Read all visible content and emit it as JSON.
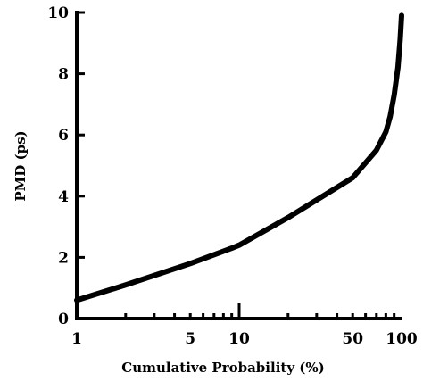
{
  "chart_data": {
    "type": "line",
    "title": "",
    "xlabel": "Cumulative Probability (%)",
    "ylabel": "PMD (ps)",
    "x_scale": "log",
    "xlim": [
      1,
      100
    ],
    "ylim": [
      0,
      10
    ],
    "x_ticks": [
      1,
      5,
      10,
      50,
      100
    ],
    "x_tick_labels": [
      "1",
      "5",
      "10",
      "50",
      "100"
    ],
    "y_ticks": [
      0,
      2,
      4,
      6,
      8,
      10
    ],
    "y_tick_labels": [
      "0",
      "2",
      "4",
      "6",
      "8",
      "10"
    ],
    "grid": false,
    "legend": "none",
    "line_color": "#000000",
    "series": [
      {
        "x": [
          1,
          2,
          5,
          9,
          10,
          20,
          50,
          70,
          80,
          85,
          90,
          95,
          98,
          100
        ],
        "y": [
          0.6,
          1.1,
          1.8,
          2.3,
          2.4,
          3.3,
          4.6,
          5.5,
          6.1,
          6.6,
          7.3,
          8.2,
          9.1,
          9.9
        ]
      }
    ]
  },
  "caption": {
    "text": ""
  }
}
